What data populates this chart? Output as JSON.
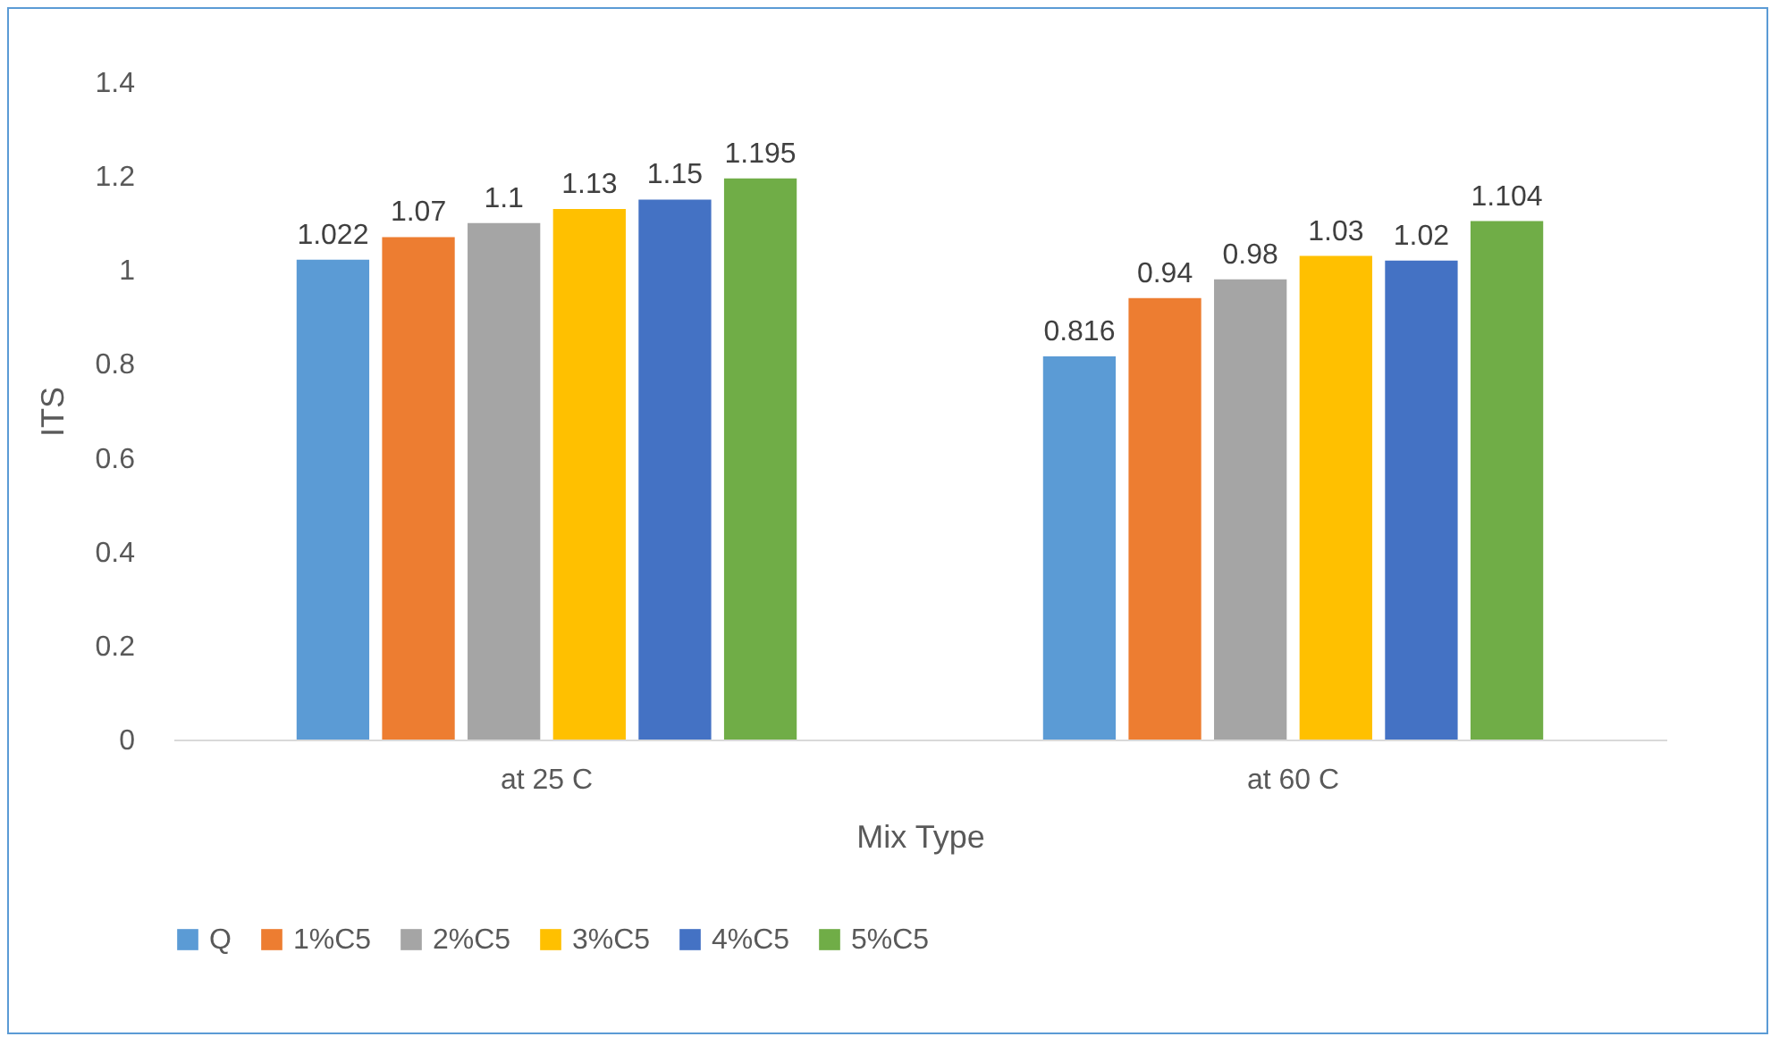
{
  "chart_data": {
    "type": "bar",
    "xlabel": "Mix Type",
    "ylabel": "ITS",
    "categories": [
      "at 25 C",
      "at 60 C"
    ],
    "series": [
      {
        "name": "Q",
        "color": "#5b9bd5",
        "values": [
          1.022,
          0.816
        ]
      },
      {
        "name": "1%C5",
        "color": "#ed7d31",
        "values": [
          1.07,
          0.94
        ]
      },
      {
        "name": "2%C5",
        "color": "#a5a5a5",
        "values": [
          1.1,
          0.98
        ]
      },
      {
        "name": "3%C5",
        "color": "#ffc000",
        "values": [
          1.13,
          1.03
        ]
      },
      {
        "name": "4%C5",
        "color": "#4472c4",
        "values": [
          1.15,
          1.02
        ]
      },
      {
        "name": "5%C5",
        "color": "#70ad47",
        "values": [
          1.195,
          1.104
        ]
      }
    ],
    "ylim": [
      0,
      1.4
    ],
    "yticks": [
      0,
      0.2,
      0.4,
      0.6,
      0.8,
      1,
      1.2,
      1.4
    ],
    "grid": false,
    "legend": "bottom",
    "data_labels": true
  }
}
